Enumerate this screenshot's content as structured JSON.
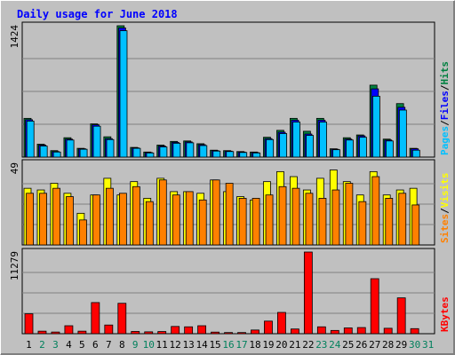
{
  "chart_data": {
    "type": "bar",
    "title": "Daily usage for June 2018",
    "days": [
      "1",
      "2",
      "3",
      "4",
      "5",
      "6",
      "7",
      "8",
      "9",
      "10",
      "11",
      "12",
      "13",
      "14",
      "15",
      "16",
      "17",
      "18",
      "19",
      "20",
      "21",
      "22",
      "23",
      "24",
      "25",
      "26",
      "27",
      "28",
      "29",
      "30",
      "31"
    ],
    "weekend_days": [
      "2",
      "3",
      "9",
      "10",
      "16",
      "17",
      "23",
      "24",
      "30",
      "31"
    ],
    "colors": {
      "background": "#c0c0c0",
      "title": "#0000ff",
      "hits": "#008040",
      "files": "#0000ff",
      "pages": "#00c0ff",
      "visits": "#ffff00",
      "sites": "#ff8000",
      "kbytes": "#ff0000",
      "weekday_label": "#000000",
      "weekend_label": "#00805c"
    },
    "panels": [
      {
        "ymax_label": "1424",
        "ylim": [
          0,
          1424
        ],
        "legend": [
          "Pages",
          "/",
          "Files",
          "/",
          "Hits"
        ],
        "series": [
          {
            "name": "Hits",
            "values": [
              420,
              140,
              70,
              210,
              95,
              360,
              220,
              1424,
              105,
              55,
              130,
              170,
              175,
              145,
              75,
              70,
              60,
              55,
              215,
              290,
              420,
              280,
              420,
              90,
              210,
              240,
              780,
              195,
              580,
              95,
              0
            ]
          },
          {
            "name": "Files",
            "values": [
              405,
              130,
              60,
              195,
              90,
              350,
              200,
              1400,
              100,
              50,
              120,
              160,
              165,
              135,
              70,
              65,
              55,
              50,
              200,
              270,
              400,
              250,
              400,
              85,
              195,
              230,
              740,
              185,
              540,
              90,
              0
            ]
          },
          {
            "name": "Pages",
            "values": [
              390,
              120,
              55,
              185,
              85,
              335,
              190,
              1370,
              95,
              45,
              110,
              150,
              155,
              125,
              65,
              60,
              50,
              45,
              190,
              255,
              380,
              235,
              380,
              80,
              185,
              215,
              660,
              175,
              510,
              75,
              0
            ]
          }
        ]
      },
      {
        "ymax_label": "49",
        "ylim": [
          0,
          49
        ],
        "legend": [
          "Sites",
          "/",
          "Visits"
        ],
        "series": [
          {
            "name": "Visits",
            "values": [
              34,
              33,
              37,
              31,
              19,
              30,
              40,
              30,
              38,
              28,
              40,
              32,
              32,
              31,
              39,
              32,
              29,
              27,
              38,
              44,
              41,
              33,
              40,
              45,
              38,
              30,
              44,
              30,
              33,
              34,
              0
            ]
          },
          {
            "name": "Sites",
            "values": [
              31,
              31,
              34,
              29,
              15,
              30,
              34,
              31,
              35,
              26,
              39,
              30,
              32,
              27,
              39,
              37,
              28,
              28,
              30,
              35,
              34,
              31,
              28,
              33,
              37,
              26,
              41,
              28,
              31,
              24,
              0
            ]
          }
        ]
      },
      {
        "ymax_label": "11279",
        "ylim": [
          0,
          11279
        ],
        "legend": [
          "KBytes"
        ],
        "series": [
          {
            "name": "KBytes",
            "values": [
              2750,
              350,
              230,
              1100,
              350,
              4300,
              1200,
              4200,
              310,
              260,
              300,
              1000,
              950,
              1100,
              220,
              160,
              160,
              510,
              1740,
              2940,
              650,
              11279,
              950,
              450,
              800,
              850,
              7600,
              750,
              4950,
              700,
              0
            ]
          }
        ]
      }
    ]
  }
}
